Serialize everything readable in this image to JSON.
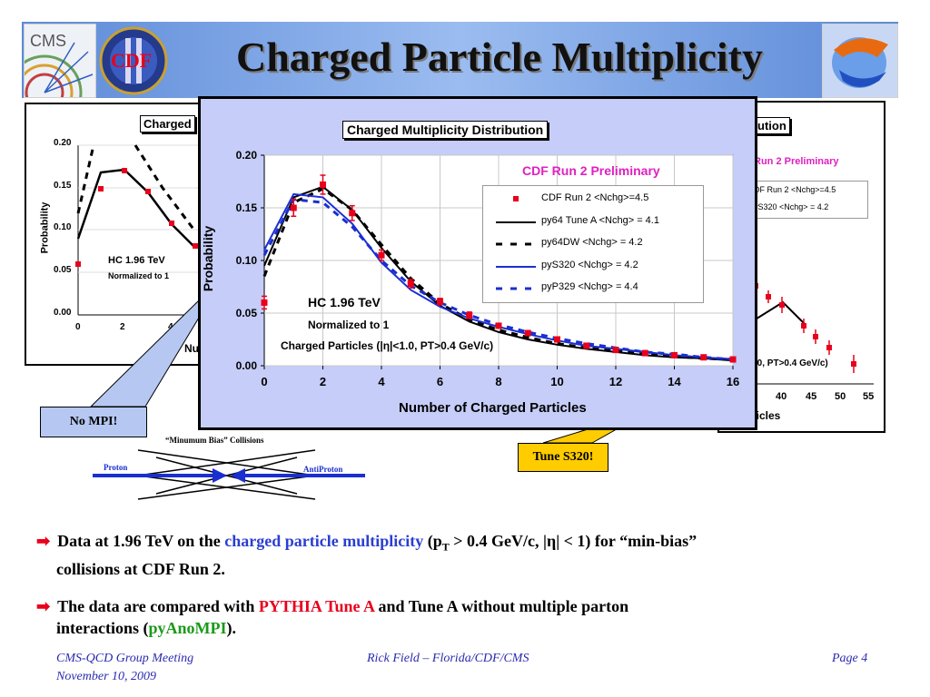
{
  "title": "Charged Particle Multiplicity",
  "logos": {
    "cms": "CMS",
    "cdf": "CDF"
  },
  "background_panels": {
    "left": {
      "title_fragment": "Charged",
      "ylabel": "Probability",
      "yticks": [
        "0.20",
        "0.15",
        "0.10",
        "0.05",
        "0.00"
      ],
      "xticks": [
        "0",
        "2",
        "4"
      ],
      "xlabel_fragment": "Nu",
      "annotation1": "HC 1.96 TeV",
      "annotation2": "Normalized to 1"
    },
    "right": {
      "title_fragment": "ution",
      "preliminary_fragment": "Run 2 Preliminary",
      "legend1": "DF Run 2 <Nchg>=4.5",
      "legend2": "yS320 <Nchg> = 4.2",
      "cuts_fragment": ":1.0, PT>0.4 GeV/c)",
      "xticks": [
        "5",
        "40",
        "45",
        "50",
        "55"
      ],
      "xlabel_fragment": "rticles"
    }
  },
  "chart_data": {
    "type": "line",
    "title": "Charged Multiplicity Distribution",
    "subtitle": "CDF Run 2 Preliminary",
    "xlabel": "Number of Charged Particles",
    "ylabel": "Probability",
    "xlim": [
      0,
      16
    ],
    "ylim": [
      0,
      0.2
    ],
    "xticks": [
      0,
      2,
      4,
      6,
      8,
      10,
      12,
      14,
      16
    ],
    "yticks": [
      "0.00",
      "0.05",
      "0.10",
      "0.15",
      "0.20"
    ],
    "annotations": [
      "HC 1.96 TeV",
      "Normalized to 1",
      "Charged Particles (|η|<1.0, PT>0.4 GeV/c)"
    ],
    "legend_position": "top-right",
    "grid": true,
    "series": [
      {
        "name": "CDF Run 2 <Nchg>=4.5",
        "kind": "data",
        "color": "#e8001c",
        "x": [
          0,
          1,
          2,
          3,
          4,
          5,
          6,
          7,
          8,
          9,
          10,
          11,
          12,
          13,
          14,
          15,
          16
        ],
        "y": [
          0.06,
          0.15,
          0.172,
          0.145,
          0.105,
          0.078,
          0.061,
          0.048,
          0.038,
          0.031,
          0.025,
          0.019,
          0.015,
          0.012,
          0.01,
          0.008,
          0.006
        ],
        "err": [
          0.006,
          0.008,
          0.009,
          0.007,
          0.005,
          0.004,
          0.003,
          0.003,
          0.002,
          0.002,
          0.002,
          0.002,
          0.002,
          0.001,
          0.001,
          0.001,
          0.001
        ]
      },
      {
        "name": "py64 Tune A <Nchg> = 4.1",
        "kind": "line",
        "style": "solid",
        "color": "#000000",
        "x": [
          0,
          1,
          2,
          3,
          4,
          5,
          6,
          7,
          8,
          9,
          10,
          11,
          12,
          13,
          14,
          15,
          16
        ],
        "y": [
          0.095,
          0.16,
          0.17,
          0.148,
          0.112,
          0.08,
          0.057,
          0.042,
          0.032,
          0.025,
          0.02,
          0.016,
          0.013,
          0.01,
          0.008,
          0.007,
          0.005
        ]
      },
      {
        "name": "py64DW <Nchg> = 4.2",
        "kind": "line",
        "style": "dashed",
        "color": "#000000",
        "x": [
          0,
          1,
          2,
          3,
          4,
          5,
          6,
          7,
          8,
          9,
          10,
          11,
          12,
          13,
          14,
          15,
          16
        ],
        "y": [
          0.085,
          0.155,
          0.168,
          0.148,
          0.115,
          0.083,
          0.059,
          0.044,
          0.034,
          0.027,
          0.021,
          0.017,
          0.014,
          0.011,
          0.009,
          0.007,
          0.006
        ]
      },
      {
        "name": "pyS320 <Nchg> = 4.2",
        "kind": "line",
        "style": "solid",
        "color": "#1a2fd0",
        "x": [
          0,
          1,
          2,
          3,
          4,
          5,
          6,
          7,
          8,
          9,
          10,
          11,
          12,
          13,
          14,
          15,
          16
        ],
        "y": [
          0.11,
          0.163,
          0.16,
          0.135,
          0.098,
          0.072,
          0.056,
          0.045,
          0.037,
          0.03,
          0.024,
          0.019,
          0.016,
          0.013,
          0.01,
          0.008,
          0.006
        ]
      },
      {
        "name": "pyP329 <Nchg> = 4.4",
        "kind": "line",
        "style": "dashed",
        "color": "#1a2fd0",
        "x": [
          0,
          1,
          2,
          3,
          4,
          5,
          6,
          7,
          8,
          9,
          10,
          11,
          12,
          13,
          14,
          15,
          16
        ],
        "y": [
          0.105,
          0.158,
          0.155,
          0.132,
          0.1,
          0.076,
          0.06,
          0.048,
          0.039,
          0.032,
          0.026,
          0.021,
          0.017,
          0.013,
          0.011,
          0.008,
          0.006
        ]
      }
    ]
  },
  "callouts": {
    "no_mpi": "No MPI!",
    "tune_s320": "Tune S320!"
  },
  "collision_diagram": {
    "label": "“Minumum Bias” Collisions",
    "proton": "Proton",
    "antiproton": "AntiProton"
  },
  "bullets": [
    {
      "p1": "Data at 1.96 TeV on the ",
      "highlight": "charged particle multiplicity",
      "p2_open": " (p",
      "sub": "T",
      "p2_close": " > 0.4 GeV/c, |η| < 1) for “min-bias”",
      "line2": "collisions at CDF Run 2."
    },
    {
      "p1": "The data are compared with ",
      "highlight1": "PYTHIA Tune A",
      "p2": " and Tune A without multiple parton",
      "line2_open": "interactions (",
      "highlight2": "pyAnoMPI",
      "line2_close": ")."
    }
  ],
  "footer": {
    "left_line1": "CMS-QCD Group Meeting",
    "left_line2": "November 10, 2009",
    "center": "Rick Field – Florida/CDF/CMS",
    "right": "Page 4"
  }
}
